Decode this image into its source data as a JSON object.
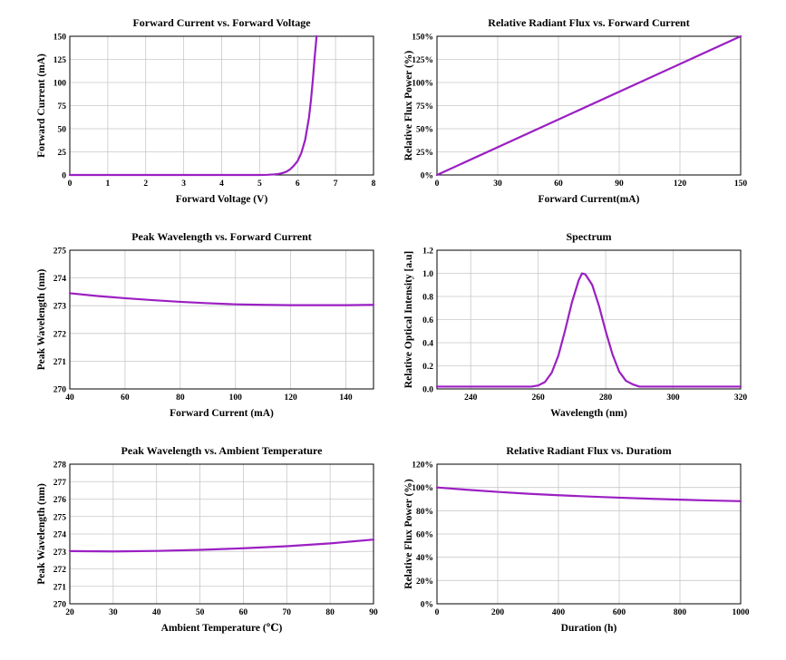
{
  "series_color": "#9b1fc3",
  "chart_data": [
    {
      "type": "line",
      "title": "Forward Current vs. Forward Voltage",
      "xlabel": "Forward Voltage (V)",
      "ylabel": "Forward Current (mA)",
      "xlim": [
        0,
        8
      ],
      "ylim": [
        0,
        150
      ],
      "xticks": [
        0,
        1,
        2,
        3,
        4,
        5,
        6,
        7,
        8
      ],
      "yticks": [
        0,
        25,
        50,
        75,
        100,
        125,
        150
      ],
      "ytick_suffix": "",
      "grid": true,
      "series": [
        {
          "x": [
            0,
            1,
            2,
            3,
            4,
            5,
            5.2,
            5.4,
            5.5,
            5.6,
            5.7,
            5.8,
            5.9,
            6.0,
            6.1,
            6.2,
            6.3,
            6.35,
            6.4,
            6.45,
            6.5
          ],
          "y": [
            0,
            0,
            0,
            0,
            0,
            0,
            0.2,
            0.7,
            1.2,
            2,
            3.5,
            6,
            10,
            15,
            24,
            38,
            62,
            80,
            102,
            127,
            150
          ]
        }
      ]
    },
    {
      "type": "line",
      "title": "Relative Radiant Flux vs. Forward Current",
      "xlabel": "Forward Current(mA)",
      "ylabel": "Relative Flux Power (%)",
      "xlim": [
        0,
        150
      ],
      "ylim": [
        0,
        150
      ],
      "xticks": [
        0,
        30,
        60,
        90,
        120,
        150
      ],
      "yticks": [
        0,
        25,
        50,
        75,
        100,
        125,
        150
      ],
      "ytick_suffix": "%",
      "grid": true,
      "series": [
        {
          "x": [
            0,
            150
          ],
          "y": [
            0,
            150
          ]
        }
      ]
    },
    {
      "type": "line",
      "title": "Peak Wavelength vs. Forward Current",
      "xlabel": "Forward Current (mA)",
      "ylabel": "Peak Wavelength (nm)",
      "xlim": [
        40,
        150
      ],
      "ylim": [
        270,
        275
      ],
      "xticks": [
        40,
        60,
        80,
        100,
        120,
        140
      ],
      "yticks": [
        270,
        271,
        272,
        273,
        274,
        275
      ],
      "ytick_suffix": "",
      "grid": true,
      "series": [
        {
          "x": [
            40,
            50,
            60,
            70,
            80,
            90,
            100,
            110,
            120,
            130,
            140,
            150
          ],
          "y": [
            273.45,
            273.35,
            273.27,
            273.2,
            273.14,
            273.09,
            273.05,
            273.03,
            273.02,
            273.02,
            273.02,
            273.03
          ]
        }
      ]
    },
    {
      "type": "line",
      "title": "Spectrum",
      "xlabel": "Wavelength (nm)",
      "ylabel": "Relative Optical Intensity [a.u]",
      "xlim": [
        230,
        320
      ],
      "ylim": [
        0,
        1.2
      ],
      "xticks": [
        240,
        260,
        280,
        300,
        320
      ],
      "yticks": [
        0.0,
        0.2,
        0.4,
        0.6,
        0.8,
        1.0,
        1.2
      ],
      "ytick_suffix": "",
      "ytick_decimals": 1,
      "grid": true,
      "series": [
        {
          "x": [
            230,
            240,
            250,
            258,
            260,
            262,
            264,
            266,
            268,
            270,
            272,
            273,
            274,
            276,
            278,
            280,
            282,
            284,
            286,
            288,
            290,
            300,
            310,
            320
          ],
          "y": [
            0.02,
            0.02,
            0.02,
            0.02,
            0.03,
            0.06,
            0.14,
            0.29,
            0.51,
            0.75,
            0.94,
            1.0,
            0.99,
            0.9,
            0.72,
            0.5,
            0.3,
            0.15,
            0.07,
            0.04,
            0.02,
            0.02,
            0.02,
            0.02
          ]
        }
      ]
    },
    {
      "type": "line",
      "title": "Peak Wavelength vs. Ambient Temperature",
      "xlabel": "Ambient Temperature (℃)",
      "ylabel": "Peak Wavelength (nm)",
      "xlim": [
        20,
        90
      ],
      "ylim": [
        270,
        278
      ],
      "xticks": [
        20,
        30,
        40,
        50,
        60,
        70,
        80,
        90
      ],
      "yticks": [
        270,
        271,
        272,
        273,
        274,
        275,
        276,
        277,
        278
      ],
      "ytick_suffix": "",
      "grid": true,
      "series": [
        {
          "x": [
            20,
            30,
            40,
            50,
            60,
            70,
            80,
            90
          ],
          "y": [
            273.02,
            273.0,
            273.03,
            273.09,
            273.18,
            273.3,
            273.46,
            273.68
          ]
        }
      ]
    },
    {
      "type": "line",
      "title": "Relative Radiant Flux vs. Duratiom",
      "xlabel": "Duration (h)",
      "ylabel": "Relative Flux Power (%)",
      "xlim": [
        0,
        1000
      ],
      "ylim": [
        0,
        120
      ],
      "xticks": [
        0,
        200,
        400,
        600,
        800,
        1000
      ],
      "yticks": [
        0,
        20,
        40,
        60,
        80,
        100,
        120
      ],
      "ytick_suffix": "%",
      "grid": true,
      "series": [
        {
          "x": [
            0,
            100,
            200,
            300,
            400,
            500,
            600,
            700,
            800,
            900,
            1000
          ],
          "y": [
            100,
            98,
            96.2,
            94.6,
            93.3,
            92.2,
            91.2,
            90.3,
            89.5,
            88.8,
            88.2
          ]
        }
      ]
    }
  ]
}
